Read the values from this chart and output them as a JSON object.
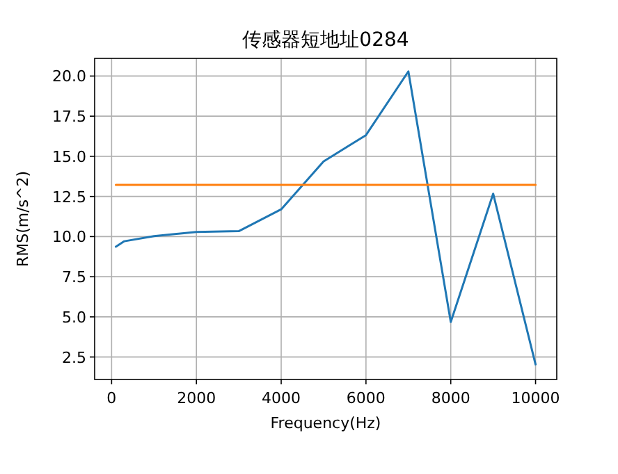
{
  "chart_data": {
    "type": "line",
    "title": "传感器短地址0284",
    "xlabel": "Frequency(Hz)",
    "ylabel": "RMS(m/s^2)",
    "xlim": [
      -400,
      10500
    ],
    "ylim": [
      1.1,
      21.1
    ],
    "xticks": [
      0,
      2000,
      4000,
      6000,
      8000,
      10000
    ],
    "yticks": [
      {
        "value": 2.5,
        "label": "2.5"
      },
      {
        "value": 5,
        "label": "5.0"
      },
      {
        "value": 7.5,
        "label": "7.5"
      },
      {
        "value": 10,
        "label": "10.0"
      },
      {
        "value": 12.5,
        "label": "12.5"
      },
      {
        "value": 15,
        "label": "15.0"
      },
      {
        "value": 17.5,
        "label": "17.5"
      },
      {
        "value": 20,
        "label": "20.0"
      }
    ],
    "grid": true,
    "marker": "none",
    "line_style": "solid",
    "series": [
      {
        "color": "#1f77b4",
        "x": [
          100,
          300,
          1000,
          2000,
          3000,
          4000,
          5000,
          6000,
          7000,
          8000,
          9000,
          10000
        ],
        "values": [
          9.37,
          9.71,
          10.03,
          10.29,
          10.34,
          11.7,
          14.68,
          16.32,
          20.29,
          4.68,
          12.67,
          2.04
        ]
      },
      {
        "color": "#ff7f0e",
        "x": [
          100,
          10000
        ],
        "values": [
          13.22,
          13.22
        ]
      }
    ]
  }
}
